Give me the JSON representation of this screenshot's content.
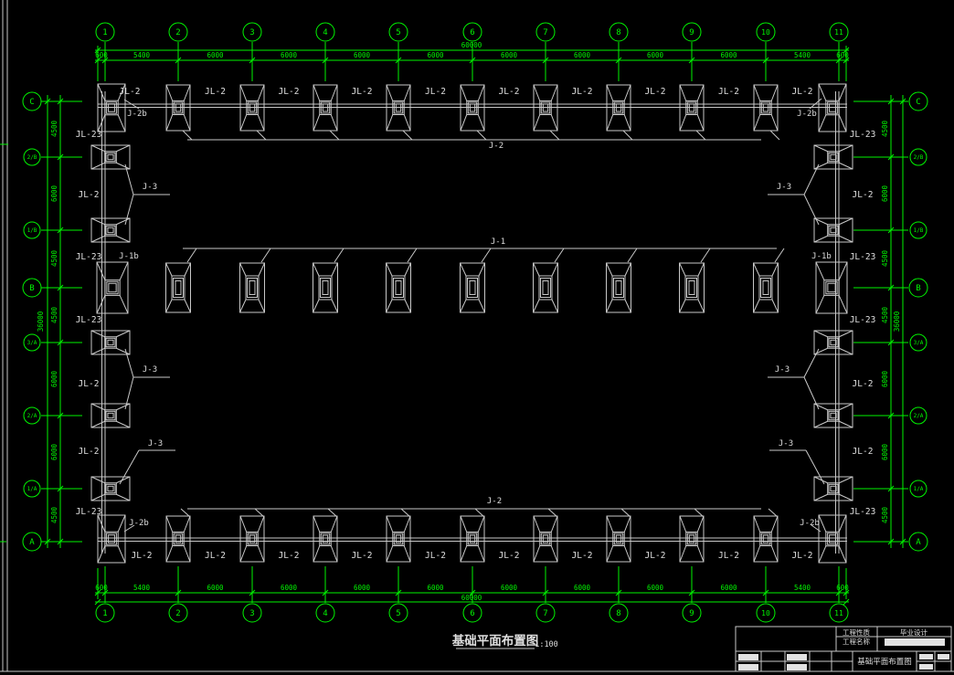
{
  "colors": {
    "background": "#000000",
    "axis_green": "#00f400",
    "line_gray": "#c9c9c9",
    "text_white": "#dedede"
  },
  "drawing_title": {
    "text": "基础平面布置图",
    "scale": "1:100"
  },
  "grid": {
    "top_axes": [
      "1",
      "2",
      "3",
      "4",
      "5",
      "6",
      "7",
      "8",
      "9",
      "10",
      "11"
    ],
    "bottom_axes": [
      "1",
      "2",
      "3",
      "4",
      "5",
      "6",
      "7",
      "8",
      "9",
      "10",
      "11"
    ],
    "left_axes": [
      "C",
      "2/B",
      "1/B",
      "B",
      "3/A",
      "2/A",
      "1/A",
      "A"
    ],
    "right_axes": [
      "C",
      "2/B",
      "1/B",
      "B",
      "3/A",
      "2/A",
      "1/A",
      "A"
    ],
    "h_dims": [
      "600",
      "5400",
      "6000",
      "6000",
      "6000",
      "6000",
      "6000",
      "6000",
      "6000",
      "6000",
      "5400",
      "600"
    ],
    "h_overall": "60000",
    "v_dims": [
      "4500",
      "6000",
      "4500",
      "4500",
      "6000",
      "6000",
      "4500"
    ],
    "v_overall": "36000"
  },
  "tags": {
    "jl2": "JL-2",
    "jl23": "JL-23",
    "j1": "J-1",
    "j1b": "J-1b",
    "j2": "J-2",
    "j2b": "J-2b",
    "j3": "J-3"
  },
  "rail_labels": [
    "JL-23",
    "JL-2",
    "JL-23",
    "JL-23",
    "JL-2",
    "JL-2",
    "JL-23"
  ],
  "titleblock": {
    "project_type_label": "工程性质",
    "project_type_value": "毕业设计",
    "project_name_label": "工程名称",
    "sheet_title": "基础平面布置图"
  }
}
